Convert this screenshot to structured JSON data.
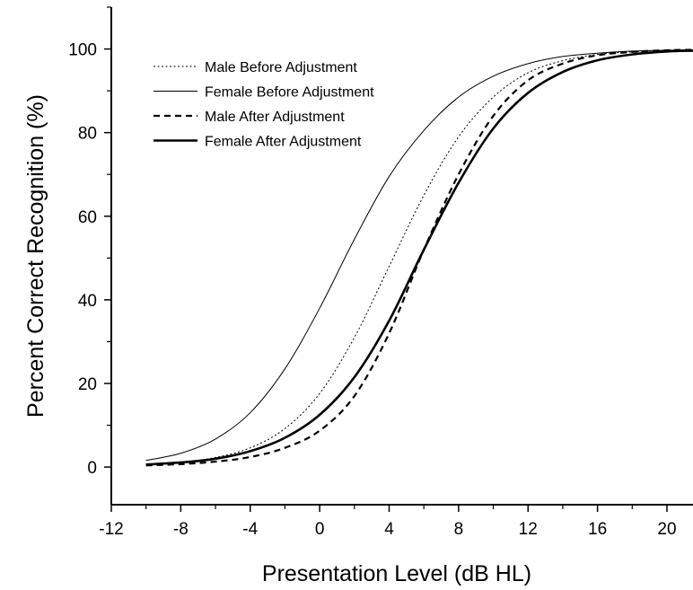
{
  "chart_data": {
    "type": "line",
    "title": "",
    "xlabel": "Presentation Level (dB HL)",
    "ylabel": "Percent Correct Recognition (%)",
    "xlim": [
      -12,
      21.5
    ],
    "ylim": [
      -9,
      110
    ],
    "x_ticks": [
      -12,
      -8,
      -4,
      0,
      4,
      8,
      12,
      16,
      20
    ],
    "y_ticks": [
      0,
      20,
      40,
      60,
      80,
      100
    ],
    "grid": false,
    "legend_position": "top-left",
    "series": [
      {
        "name": "Male Before Adjustment",
        "style": "dotted",
        "stroke_width": 1,
        "color": "#000000",
        "points": [
          [
            -10,
            0.6
          ],
          [
            -8,
            1.1
          ],
          [
            -6,
            2.3
          ],
          [
            -4,
            4.6
          ],
          [
            -2,
            9.2
          ],
          [
            0,
            17.6
          ],
          [
            2,
            31
          ],
          [
            4,
            48
          ],
          [
            6,
            65
          ],
          [
            8,
            79
          ],
          [
            10,
            88.5
          ],
          [
            12,
            94.3
          ],
          [
            14,
            97.2
          ],
          [
            16,
            98.7
          ],
          [
            18,
            99.3
          ],
          [
            20,
            99.7
          ],
          [
            21.5,
            99.8
          ]
        ]
      },
      {
        "name": "Female Before Adjustment",
        "style": "solid",
        "stroke_width": 1,
        "color": "#000000",
        "points": [
          [
            -10,
            1.6
          ],
          [
            -8,
            3.3
          ],
          [
            -6,
            6.7
          ],
          [
            -4,
            13
          ],
          [
            -2,
            23.5
          ],
          [
            0,
            38
          ],
          [
            2,
            54.5
          ],
          [
            4,
            69.5
          ],
          [
            6,
            80.5
          ],
          [
            8,
            88.5
          ],
          [
            10,
            93.5
          ],
          [
            12,
            96.5
          ],
          [
            14,
            98.2
          ],
          [
            16,
            99
          ],
          [
            18,
            99.5
          ],
          [
            20,
            99.7
          ],
          [
            21.5,
            99.8
          ]
        ]
      },
      {
        "name": "Male After Adjustment",
        "style": "dashed",
        "stroke_width": 2.2,
        "color": "#000000",
        "points": [
          [
            -10,
            0.4
          ],
          [
            -8,
            0.7
          ],
          [
            -6,
            1.3
          ],
          [
            -4,
            2.4
          ],
          [
            -2,
            4.6
          ],
          [
            0,
            8.7
          ],
          [
            2,
            17
          ],
          [
            4,
            32
          ],
          [
            6,
            52
          ],
          [
            8,
            70
          ],
          [
            10,
            84
          ],
          [
            12,
            92.5
          ],
          [
            14,
            96.5
          ],
          [
            16,
            98.5
          ],
          [
            18,
            99.3
          ],
          [
            20,
            99.7
          ],
          [
            21.5,
            99.8
          ]
        ]
      },
      {
        "name": "Female After Adjustment",
        "style": "solid",
        "stroke_width": 2.6,
        "color": "#000000",
        "points": [
          [
            -10,
            0.6
          ],
          [
            -8,
            1.1
          ],
          [
            -6,
            2
          ],
          [
            -4,
            3.8
          ],
          [
            -2,
            7
          ],
          [
            0,
            12.5
          ],
          [
            2,
            21.5
          ],
          [
            4,
            35
          ],
          [
            6,
            52
          ],
          [
            8,
            68
          ],
          [
            10,
            81
          ],
          [
            12,
            89.5
          ],
          [
            14,
            94.5
          ],
          [
            16,
            97.3
          ],
          [
            18,
            98.7
          ],
          [
            20,
            99.4
          ],
          [
            21.5,
            99.6
          ]
        ]
      }
    ]
  }
}
